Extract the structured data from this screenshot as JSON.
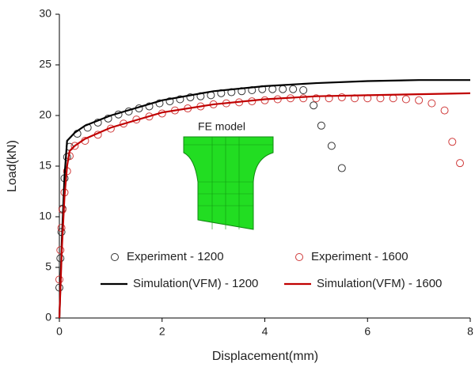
{
  "chart_data": {
    "type": "line",
    "x_label": "Displacement(mm)",
    "y_label": "Load(kN)",
    "annotation": "FE model",
    "xlim": [
      0,
      8
    ],
    "ylim": [
      0,
      30
    ],
    "xticks": [
      0,
      2,
      4,
      6,
      8
    ],
    "yticks": [
      0,
      5,
      10,
      15,
      20,
      25,
      30
    ],
    "series": [
      {
        "name": "Experiment - 1200",
        "type": "scatter",
        "color": "#333333",
        "x": [
          0.0,
          0.02,
          0.04,
          0.06,
          0.1,
          0.15,
          0.2,
          0.35,
          0.55,
          0.75,
          0.95,
          1.15,
          1.35,
          1.55,
          1.75,
          1.95,
          2.15,
          2.35,
          2.55,
          2.75,
          2.95,
          3.15,
          3.35,
          3.55,
          3.75,
          3.95,
          4.15,
          4.35,
          4.55,
          4.75,
          4.95,
          5.1,
          5.3,
          5.5
        ],
        "values": [
          3.0,
          5.9,
          8.5,
          10.8,
          13.8,
          15.9,
          16.9,
          18.2,
          18.8,
          19.3,
          19.7,
          20.1,
          20.4,
          20.7,
          20.9,
          21.2,
          21.4,
          21.6,
          21.8,
          21.9,
          22.0,
          22.2,
          22.3,
          22.4,
          22.5,
          22.6,
          22.6,
          22.6,
          22.6,
          22.5,
          21.0,
          19.0,
          17.0,
          14.8
        ]
      },
      {
        "name": "Experiment - 1600",
        "type": "scatter",
        "color": "#d03a3a",
        "x": [
          0.0,
          0.02,
          0.04,
          0.06,
          0.1,
          0.15,
          0.2,
          0.3,
          0.5,
          0.75,
          1.0,
          1.25,
          1.5,
          1.75,
          2.0,
          2.25,
          2.5,
          2.75,
          3.0,
          3.25,
          3.5,
          3.75,
          4.0,
          4.25,
          4.5,
          4.75,
          5.0,
          5.25,
          5.5,
          5.75,
          6.0,
          6.25,
          6.5,
          6.75,
          7.0,
          7.25,
          7.5,
          7.65,
          7.8
        ],
        "values": [
          3.8,
          6.7,
          8.9,
          10.7,
          12.4,
          14.5,
          16.0,
          17.0,
          17.5,
          18.1,
          18.7,
          19.2,
          19.6,
          19.9,
          20.2,
          20.5,
          20.7,
          20.9,
          21.1,
          21.2,
          21.3,
          21.4,
          21.5,
          21.6,
          21.7,
          21.7,
          21.7,
          21.7,
          21.8,
          21.7,
          21.7,
          21.7,
          21.7,
          21.6,
          21.5,
          21.2,
          20.5,
          17.4,
          15.3
        ]
      },
      {
        "name": "Simulation(VFM) - 1200",
        "type": "line",
        "color": "#000000",
        "x": [
          0,
          0.05,
          0.1,
          0.15,
          0.3,
          0.5,
          1,
          2,
          3,
          4,
          5,
          6,
          7,
          8
        ],
        "values": [
          0,
          8,
          14,
          17.5,
          18.3,
          19,
          20,
          21.5,
          22.4,
          22.9,
          23.2,
          23.4,
          23.5,
          23.5
        ]
      },
      {
        "name": "Simulation(VFM) - 1600",
        "type": "line",
        "color": "#c00000",
        "x": [
          0,
          0.05,
          0.1,
          0.15,
          0.2,
          0.3,
          0.5,
          1,
          2,
          3,
          4,
          5,
          6,
          7,
          8
        ],
        "values": [
          0,
          7,
          12,
          15,
          16.5,
          17,
          17.7,
          18.8,
          20.3,
          21.1,
          21.6,
          21.9,
          22.0,
          22.1,
          22.2
        ]
      }
    ]
  }
}
